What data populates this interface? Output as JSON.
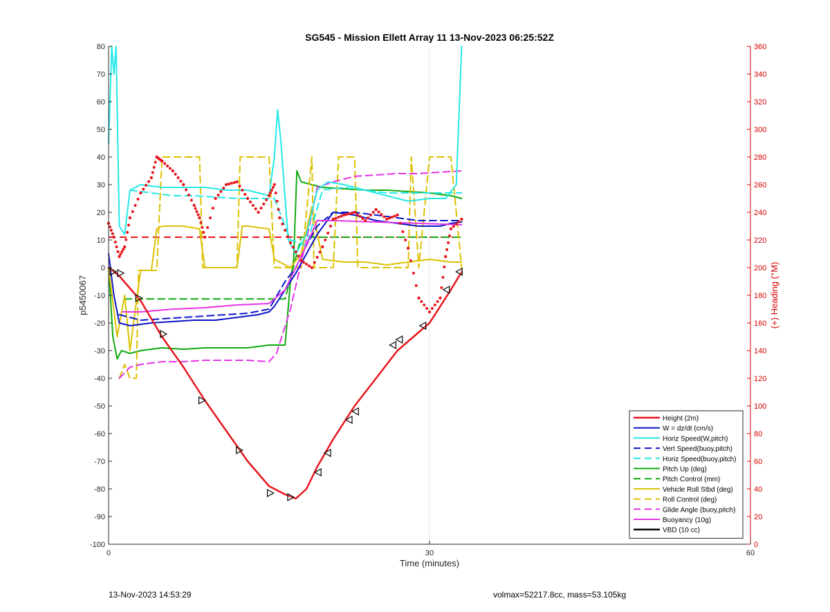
{
  "chart_data": {
    "type": "line",
    "title": "SG545 - Mission Ellett Array 11 13-Nov-2023 06:25:52Z",
    "xlabel": "Time (minutes)",
    "ylabel": "p5450067",
    "y2label": "(+) Heading (°M)",
    "xlim": [
      0,
      60
    ],
    "ylim": [
      -100,
      80
    ],
    "y2lim": [
      0,
      360
    ],
    "xticks": [
      0,
      30,
      60
    ],
    "yticks": [
      -100,
      -90,
      -80,
      -70,
      -60,
      -50,
      -40,
      -30,
      -20,
      -10,
      0,
      10,
      20,
      30,
      40,
      50,
      60,
      70,
      80
    ],
    "y2ticks": [
      0,
      20,
      40,
      60,
      80,
      100,
      120,
      140,
      160,
      180,
      200,
      220,
      240,
      260,
      280,
      300,
      320,
      340,
      360
    ],
    "grid": "x-only",
    "legend_position": "bottom-right",
    "colors": {
      "axis_left": "#262626",
      "axis_right": "#d40000",
      "grid": "#e6e6e6"
    },
    "series": [
      {
        "name": "Height (2m)",
        "color": "#e8141a",
        "style": "solid",
        "width": 2.5,
        "x": [
          0,
          1,
          3,
          5,
          7,
          9,
          11,
          13,
          15,
          16.5,
          17.5,
          18.5,
          19.5,
          21,
          23,
          25,
          27,
          28.5,
          30,
          31,
          32,
          33
        ],
        "y": [
          0,
          -3,
          -12,
          -25,
          -36,
          -48,
          -59,
          -70,
          -79,
          -82,
          -83.5,
          -80,
          -72,
          -62,
          -50,
          -40,
          -30,
          -25,
          -20,
          -14,
          -8,
          -1.5
        ]
      },
      {
        "name": "W = dz/dt (cm/s)",
        "color": "#0a14c8",
        "style": "solid",
        "width": 2,
        "x": [
          0,
          0.5,
          1,
          2,
          4,
          6,
          8,
          10,
          12,
          14,
          15,
          15.5,
          16.5,
          17.5,
          18.5,
          19.5,
          21,
          23,
          25,
          27,
          29,
          31,
          32,
          33
        ],
        "y": [
          5,
          -10,
          -20,
          -21,
          -20,
          -19.5,
          -19,
          -19,
          -18,
          -17,
          -16,
          -14,
          -8,
          -2,
          5,
          12,
          20,
          19,
          17,
          16,
          15,
          15,
          16,
          16.5
        ]
      },
      {
        "name": "Horiz Speed(W,pitch)",
        "color": "#24e8e8",
        "style": "solid",
        "width": 2,
        "x": [
          0,
          0.3,
          0.5,
          0.7,
          1,
          1.5,
          2,
          3,
          5,
          7,
          9,
          11,
          13,
          15,
          15.5,
          15.8,
          16.1,
          16.5,
          16.8,
          17.5,
          18.5,
          19.5,
          20.5,
          22,
          24,
          26,
          28,
          30,
          31.5,
          32.5,
          33
        ],
        "y": [
          45,
          80,
          70,
          80,
          15,
          12,
          28,
          30,
          29,
          29,
          29,
          28,
          28,
          26,
          40,
          57,
          46,
          25,
          10,
          5,
          12,
          28,
          31,
          30,
          28,
          26,
          24,
          25,
          25,
          30,
          80
        ]
      },
      {
        "name": "Vert Speed(buoy,pitch)",
        "color": "#0a14c8",
        "style": "dashed",
        "width": 2,
        "x": [
          1,
          3,
          5,
          7,
          9,
          11,
          13,
          15,
          16.5,
          17.5,
          18.5,
          19.5,
          21,
          23,
          25,
          27,
          29,
          31,
          33
        ],
        "y": [
          -17,
          -19,
          -18.5,
          -18,
          -17.5,
          -17,
          -16.5,
          -15,
          -5,
          0,
          8,
          15,
          20,
          20,
          19,
          18,
          17,
          17,
          17
        ]
      },
      {
        "name": "Horiz Speed(buoy,pitch)",
        "color": "#24e8e8",
        "style": "dashed",
        "width": 2,
        "x": [
          2,
          4,
          6,
          8,
          10,
          12,
          14,
          15.5,
          17,
          18.5,
          20,
          22,
          24,
          26,
          28,
          30,
          32,
          33
        ],
        "y": [
          28,
          27,
          26,
          26,
          25.5,
          25,
          25,
          25,
          10,
          8,
          28,
          29,
          28,
          27,
          27,
          27,
          27,
          27
        ]
      },
      {
        "name": "Pitch Up (deg)",
        "color": "#0faa0f",
        "style": "solid",
        "width": 2,
        "x": [
          0,
          0.4,
          0.8,
          1.2,
          2,
          3,
          5,
          7,
          9,
          11,
          13,
          15,
          16.5,
          17,
          17.3,
          17.6,
          18,
          19,
          20,
          22,
          24,
          26,
          28,
          30,
          32,
          33
        ],
        "y": [
          0,
          -25,
          -33,
          -30,
          -31,
          -30,
          -29,
          -29.5,
          -29,
          -29,
          -29,
          -28,
          -28,
          -5,
          3,
          35,
          31,
          30,
          29,
          28.5,
          28,
          28,
          27.5,
          27,
          26,
          25
        ]
      },
      {
        "name": "Pitch Control (mm)",
        "color": "#0faa0f",
        "style": "dashed",
        "width": 2,
        "x": [
          1.5,
          16.5,
          18,
          33
        ],
        "y": [
          -11.3,
          -11.3,
          11,
          11
        ]
      },
      {
        "name": "Vehicle Roll Stbd (deg)",
        "color": "#dcc000",
        "style": "solid",
        "width": 2,
        "x": [
          0,
          0.8,
          1.5,
          2,
          2.5,
          3,
          4,
          4.5,
          5,
          7,
          8.5,
          9,
          10,
          12,
          12.5,
          13,
          15,
          15.5,
          16,
          17,
          18,
          19,
          20,
          22,
          24,
          26,
          28,
          30,
          32,
          33
        ],
        "y": [
          0,
          -25,
          -10,
          -30,
          -15,
          -1,
          -1,
          14,
          15,
          15,
          14,
          0,
          0,
          0,
          15,
          15,
          14,
          3,
          2,
          0,
          5,
          22,
          3,
          2,
          2,
          1,
          2,
          3,
          2,
          2
        ]
      },
      {
        "name": "Roll Control (deg)",
        "color": "#dcc000",
        "style": "dashed",
        "width": 2,
        "x": [
          1,
          1.5,
          2,
          2.6,
          2.8,
          4.5,
          5,
          8.5,
          8.8,
          12,
          12.3,
          15,
          15.5,
          18,
          19,
          19.2,
          21,
          21.5,
          23,
          23.3,
          28,
          28.3,
          29,
          30,
          32,
          33
        ],
        "y": [
          -40,
          -35,
          -40,
          -40,
          -1,
          -1,
          40,
          40,
          0,
          0,
          40,
          40,
          0,
          0,
          40,
          0,
          0,
          40,
          40,
          0,
          0,
          40,
          0,
          40,
          40,
          0
        ]
      },
      {
        "name": "Glide Angle (buoy,pitch)",
        "color": "#e632e6",
        "style": "dashed",
        "width": 2,
        "x": [
          1,
          2,
          3,
          5,
          7,
          9,
          11,
          13,
          15,
          15.7,
          17,
          18.5,
          19.5,
          21,
          23,
          25,
          27,
          29,
          31,
          33
        ],
        "y": [
          -40,
          -36,
          -35,
          -34,
          -34,
          -33.5,
          -33.5,
          -33.5,
          -34,
          -31,
          -15,
          10,
          29,
          31,
          33,
          33.5,
          34,
          34,
          34.5,
          35
        ]
      },
      {
        "name": "Buoyancy (10g)",
        "color": "#e632e6",
        "style": "solid",
        "width": 2,
        "x": [
          1.3,
          3,
          6,
          9,
          12,
          15,
          16.5,
          17.5,
          18.5,
          19.5,
          21,
          25,
          29,
          33
        ],
        "y": [
          -16,
          -16,
          -15,
          -14.5,
          -13.5,
          -13,
          -8,
          0,
          8,
          17,
          17,
          16.5,
          16,
          15.5
        ]
      },
      {
        "name": "VBD (10 cc)",
        "color": "#000000",
        "style": "solid",
        "width": 2.5,
        "x": [
          0.2,
          0.5,
          0.8,
          1.2,
          3,
          6,
          9,
          12,
          14,
          15.2,
          16.5,
          17.5,
          18.5,
          19.5,
          22,
          26,
          30,
          32,
          33
        ],
        "y": [
          2,
          -5,
          -14.5,
          -14.5,
          -14.5,
          -14.5,
          -14.5,
          -14.5,
          -14.5,
          -14.5,
          -6,
          0,
          7,
          14.5,
          14.5,
          14.5,
          14.5,
          14.5,
          13
        ]
      }
    ],
    "heading_series": {
      "axis": "right",
      "color": "#e8141a",
      "style": "dotted",
      "x": [
        0,
        0.5,
        1,
        1.5,
        2,
        3,
        4,
        4.5,
        5,
        6,
        7,
        8,
        8.5,
        9,
        10,
        11,
        12,
        13,
        14,
        15,
        15.5,
        16,
        17,
        18,
        19,
        20,
        21,
        22,
        23,
        24,
        25,
        26,
        27,
        28,
        29,
        30,
        31,
        31.5,
        32,
        33
      ],
      "y": [
        232,
        222,
        208,
        215,
        236,
        254,
        265,
        280,
        277,
        270,
        260,
        245,
        236,
        222,
        250,
        260,
        262,
        250,
        240,
        252,
        260,
        236,
        218,
        205,
        200,
        215,
        235,
        238,
        240,
        234,
        242,
        235,
        238,
        214,
        178,
        168,
        178,
        208,
        228,
        235
      ]
    },
    "reference_line": {
      "axis": "right",
      "y": 222,
      "color": "#e8141a",
      "style": "dashed",
      "x": [
        0,
        33
      ]
    },
    "markers": {
      "shape": "triangle",
      "x": [
        0.4,
        1.1,
        2.8,
        5.1,
        8.7,
        12.2,
        15.1,
        17,
        19.6,
        20.5,
        22.5,
        23.1,
        26.6,
        27.2,
        29.4,
        31.6,
        32.8
      ],
      "y": [
        -1.5,
        -2,
        -11,
        -24,
        -48,
        -66,
        -81.5,
        -83,
        -74,
        -67,
        -55,
        -52,
        -28,
        -26,
        -21,
        -8,
        -1.5
      ]
    }
  },
  "footer": {
    "timestamp": "13-Nov-2023 14:53:29",
    "params": "volmax=52217.8cc, mass=53.105kg"
  }
}
